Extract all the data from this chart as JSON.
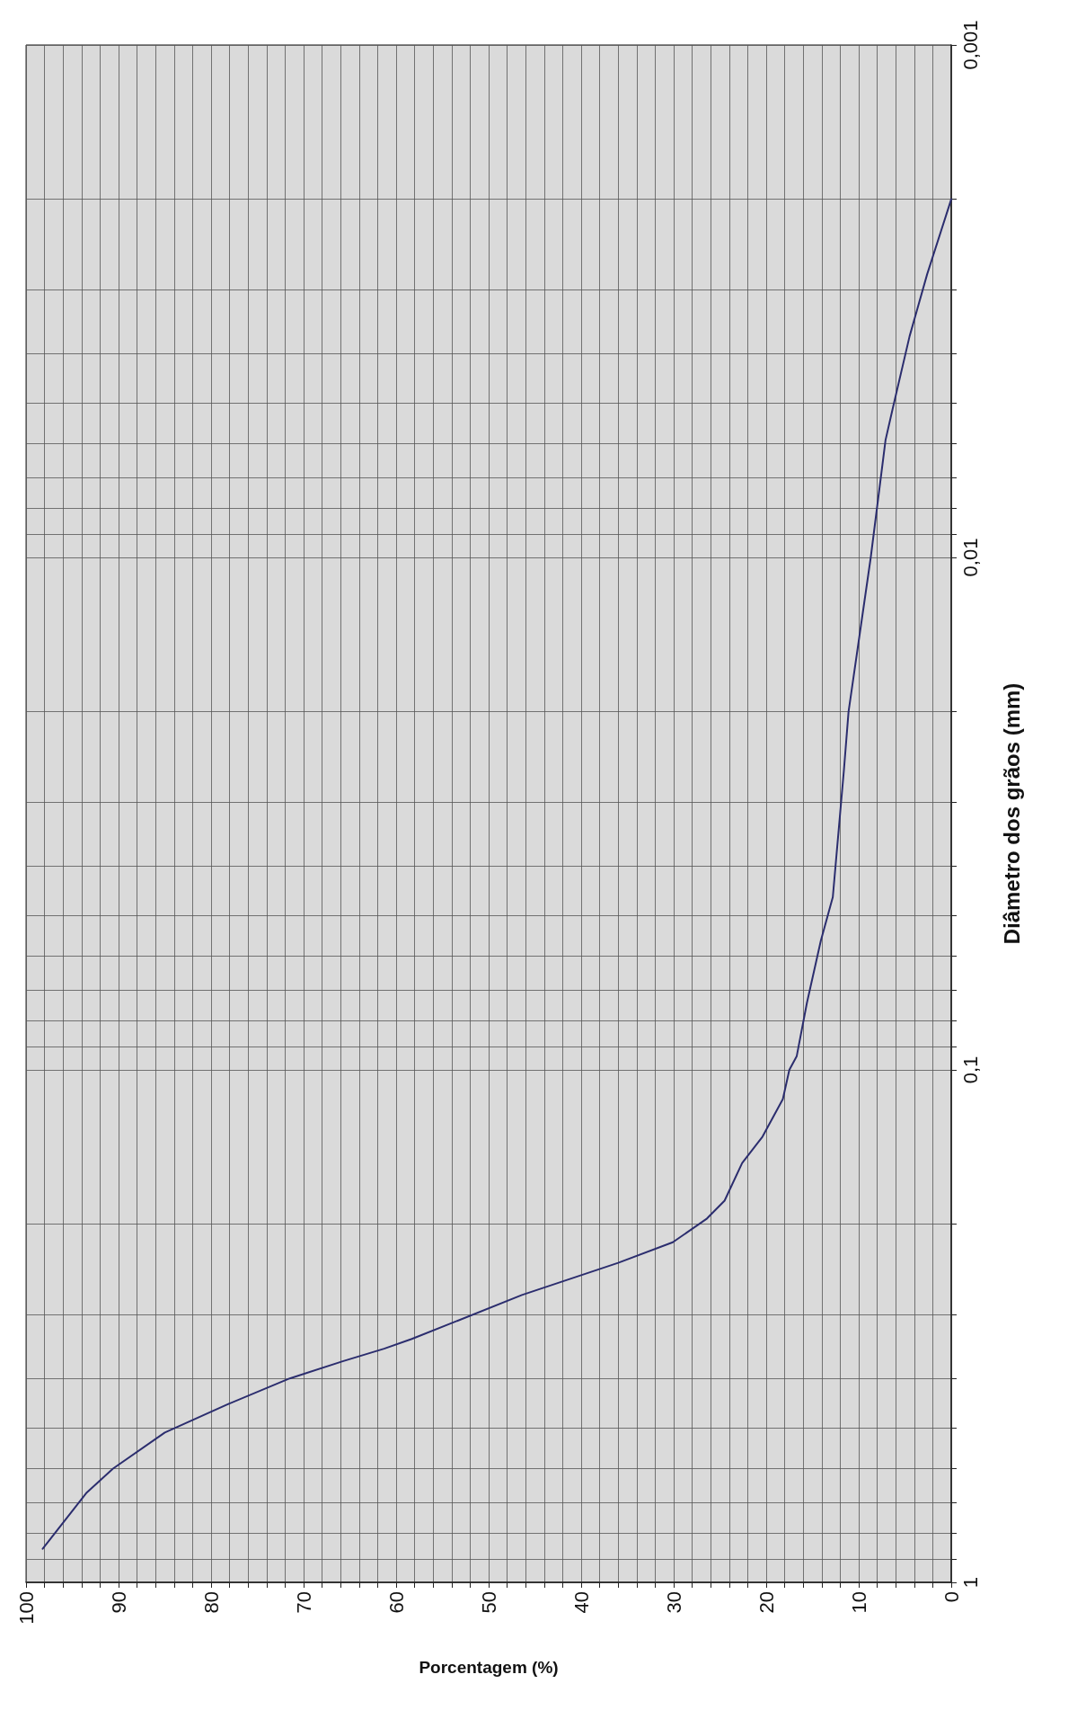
{
  "chart_data": {
    "type": "line",
    "xlabel": "Porcentagem (%)",
    "ylabel": "Diâmetro dos grãos (mm)",
    "x": [
      98.2,
      93.5,
      90.6,
      85.0,
      78.3,
      71.5,
      65.7,
      61.3,
      58.3,
      46.4,
      36.0,
      30.1,
      26.4,
      24.5,
      22.6,
      20.4,
      18.2,
      17.5,
      16.7,
      15.6,
      14.1,
      12.8,
      11.6,
      11.1,
      8.7,
      7.1,
      6.3,
      4.5,
      2.6,
      0
    ],
    "series": [
      {
        "color": "#2b2d6e",
        "values": [
          0.86,
          0.67,
          0.6,
          0.51,
          0.45,
          0.4,
          0.37,
          0.35,
          0.335,
          0.275,
          0.238,
          0.217,
          0.195,
          0.18,
          0.152,
          0.135,
          0.114,
          0.1,
          0.094,
          0.074,
          0.056,
          0.046,
          0.026,
          0.02,
          0.01,
          0.0059,
          0.0051,
          0.0037,
          0.0028,
          0.002
        ]
      }
    ],
    "xlim": [
      100,
      0
    ],
    "ylim": [
      1,
      0.001
    ],
    "log": "y",
    "xticks": [
      100,
      {
        "value": 98,
        "label": null
      },
      {
        "value": 96,
        "label": null
      },
      {
        "value": 94,
        "label": null
      },
      {
        "value": 92,
        "label": null
      },
      90,
      {
        "value": 88,
        "label": null
      },
      {
        "value": 86,
        "label": null
      },
      {
        "value": 84,
        "label": null
      },
      {
        "value": 82,
        "label": null
      },
      80,
      {
        "value": 78,
        "label": null
      },
      {
        "value": 76,
        "label": null
      },
      {
        "value": 74,
        "label": null
      },
      {
        "value": 72,
        "label": null
      },
      70,
      {
        "value": 68,
        "label": null
      },
      {
        "value": 66,
        "label": null
      },
      {
        "value": 64,
        "label": null
      },
      {
        "value": 62,
        "label": null
      },
      60,
      {
        "value": 58,
        "label": null
      },
      {
        "value": 56,
        "label": null
      },
      {
        "value": 54,
        "label": null
      },
      {
        "value": 52,
        "label": null
      },
      50,
      {
        "value": 48,
        "label": null
      },
      {
        "value": 46,
        "label": null
      },
      {
        "value": 44,
        "label": null
      },
      {
        "value": 42,
        "label": null
      },
      40,
      {
        "value": 38,
        "label": null
      },
      {
        "value": 36,
        "label": null
      },
      {
        "value": 34,
        "label": null
      },
      {
        "value": 32,
        "label": null
      },
      30,
      {
        "value": 28,
        "label": null
      },
      {
        "value": 26,
        "label": null
      },
      {
        "value": 24,
        "label": null
      },
      {
        "value": 22,
        "label": null
      },
      20,
      {
        "value": 18,
        "label": null
      },
      {
        "value": 16,
        "label": null
      },
      {
        "value": 14,
        "label": null
      },
      {
        "value": 12,
        "label": null
      },
      10,
      {
        "value": 8,
        "label": null
      },
      {
        "value": 6,
        "label": null
      },
      {
        "value": 4,
        "label": null
      },
      {
        "value": 2,
        "label": null
      },
      0
    ],
    "yticks": [
      1,
      {
        "value": 0.9,
        "label": null
      },
      {
        "value": 0.8,
        "label": null
      },
      {
        "value": 0.7,
        "label": null
      },
      {
        "value": 0.6,
        "label": null
      },
      {
        "value": 0.5,
        "label": null
      },
      {
        "value": 0.4,
        "label": null
      },
      {
        "value": 0.3,
        "label": null
      },
      {
        "value": 0.2,
        "label": null
      },
      {
        "value": 0.1,
        "label": "0,1"
      },
      {
        "value": 0.09,
        "label": null
      },
      {
        "value": 0.08,
        "label": null
      },
      {
        "value": 0.07,
        "label": null
      },
      {
        "value": 0.06,
        "label": null
      },
      {
        "value": 0.05,
        "label": null
      },
      {
        "value": 0.04,
        "label": null
      },
      {
        "value": 0.03,
        "label": null
      },
      {
        "value": 0.02,
        "label": null
      },
      {
        "value": 0.01,
        "label": "0,01"
      },
      {
        "value": 0.009,
        "label": null
      },
      {
        "value": 0.008,
        "label": null
      },
      {
        "value": 0.007,
        "label": null
      },
      {
        "value": 0.006,
        "label": null
      },
      {
        "value": 0.005,
        "label": null
      },
      {
        "value": 0.004,
        "label": null
      },
      {
        "value": 0.003,
        "label": null
      },
      {
        "value": 0.002,
        "label": null
      },
      {
        "value": 0.001,
        "label": "0,001"
      }
    ],
    "grid": true,
    "marker": "none",
    "line_style": "solid"
  }
}
